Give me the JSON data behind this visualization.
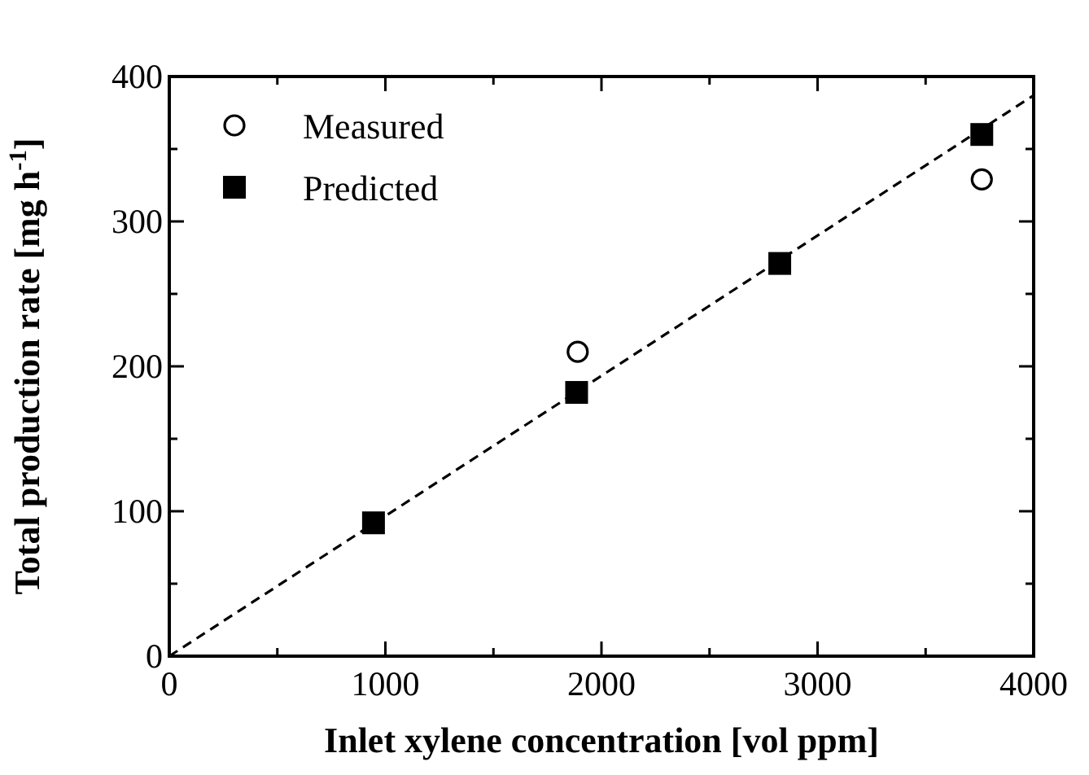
{
  "chart_data": {
    "type": "scatter",
    "xlabel": "Inlet xylene concentration [vol ppm]",
    "ylabel": "Total production rate [mg h$^{-1}$]",
    "xlim": [
      0,
      4000
    ],
    "ylim": [
      0,
      400
    ],
    "xticks": [
      0,
      {
        "value": 500,
        "label": null
      },
      1000,
      {
        "value": 1500,
        "label": null
      },
      2000,
      {
        "value": 2500,
        "label": null
      },
      3000,
      {
        "value": 3500,
        "label": null
      },
      4000
    ],
    "yticks": [
      0,
      {
        "value": 50,
        "label": null
      },
      100,
      {
        "value": 150,
        "label": null
      },
      200,
      {
        "value": 250,
        "label": null
      },
      300,
      {
        "value": 350,
        "label": null
      },
      400
    ],
    "grid": false,
    "legend": "top left",
    "series": [
      {
        "name": "Measured",
        "marker": "circle",
        "color": "#000000",
        "x": [
          1890,
          3760
        ],
        "values": [
          210,
          329
        ]
      },
      {
        "name": "Predicted",
        "marker": "square",
        "color": "#000000",
        "x": [
          945,
          1885,
          2825,
          3760
        ],
        "values": [
          92,
          182,
          271,
          360
        ]
      },
      {
        "type": "line",
        "line_style": "dashed",
        "marker": "none",
        "color": "#000000",
        "x": [
          0,
          4000
        ],
        "values": [
          0,
          387
        ]
      }
    ]
  }
}
